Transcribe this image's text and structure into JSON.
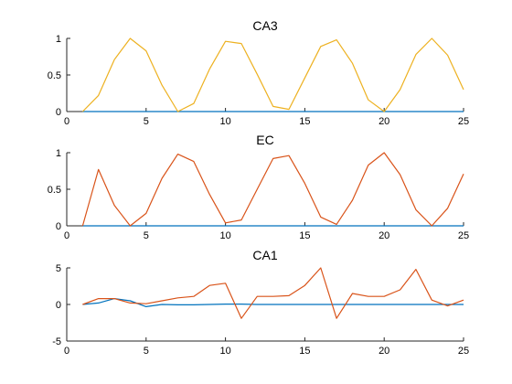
{
  "chart_data": [
    {
      "type": "line",
      "title": "CA3",
      "xlim": [
        0,
        25
      ],
      "ylim": [
        0,
        1
      ],
      "xticks": [
        "0",
        "5",
        "10",
        "15",
        "20",
        "25"
      ],
      "yticks": [
        "0",
        "0.5",
        "1"
      ],
      "x": [
        1,
        2,
        3,
        4,
        5,
        6,
        7,
        8,
        9,
        10,
        11,
        12,
        13,
        14,
        15,
        16,
        17,
        18,
        19,
        20,
        21,
        22,
        23,
        24,
        25
      ],
      "series": [
        {
          "color": "#0072BD",
          "values": [
            0,
            0,
            0,
            0,
            0,
            0,
            0,
            0,
            0,
            0,
            0,
            0,
            0,
            0,
            0,
            0,
            0,
            0,
            0,
            0,
            0,
            0,
            0,
            0,
            0
          ]
        },
        {
          "color": "#EDB120",
          "values": [
            0,
            0.22,
            0.71,
            1.0,
            0.83,
            0.36,
            0.0,
            0.11,
            0.58,
            0.96,
            0.93,
            0.51,
            0.07,
            0.03,
            0.46,
            0.89,
            0.98,
            0.66,
            0.16,
            0.0,
            0.3,
            0.78,
            1.0,
            0.77,
            0.3
          ]
        }
      ]
    },
    {
      "type": "line",
      "title": "EC",
      "xlim": [
        0,
        25
      ],
      "ylim": [
        0,
        1
      ],
      "xticks": [
        "0",
        "5",
        "10",
        "15",
        "20",
        "25"
      ],
      "yticks": [
        "0",
        "0.5",
        "1"
      ],
      "x": [
        1,
        2,
        3,
        4,
        5,
        6,
        7,
        8,
        9,
        10,
        11,
        12,
        13,
        14,
        15,
        16,
        17,
        18,
        19,
        20,
        21,
        22,
        23,
        24,
        25
      ],
      "series": [
        {
          "color": "#0072BD",
          "values": [
            0,
            0,
            0,
            0,
            0,
            0,
            0,
            0,
            0,
            0,
            0,
            0,
            0,
            0,
            0,
            0,
            0,
            0,
            0,
            0,
            0,
            0,
            0,
            0,
            0
          ]
        },
        {
          "color": "#D95319",
          "values": [
            0,
            0.77,
            0.28,
            0.0,
            0.17,
            0.65,
            0.98,
            0.88,
            0.43,
            0.04,
            0.08,
            0.5,
            0.92,
            0.96,
            0.58,
            0.12,
            0.02,
            0.35,
            0.83,
            1.0,
            0.7,
            0.22,
            0.0,
            0.24,
            0.71
          ]
        }
      ]
    },
    {
      "type": "line",
      "title": "CA1",
      "xlim": [
        0,
        25
      ],
      "ylim": [
        -5,
        5
      ],
      "xticks": [
        "0",
        "5",
        "10",
        "15",
        "20",
        "25"
      ],
      "yticks": [
        "-5",
        "0",
        "5"
      ],
      "x": [
        1,
        2,
        3,
        4,
        5,
        6,
        7,
        8,
        9,
        10,
        11,
        12,
        13,
        14,
        15,
        16,
        17,
        18,
        19,
        20,
        21,
        22,
        23,
        24,
        25
      ],
      "series": [
        {
          "color": "#0072BD",
          "values": [
            0,
            0.2,
            0.8,
            0.5,
            -0.3,
            0.0,
            -0.05,
            -0.05,
            0,
            0.05,
            0.05,
            0,
            0,
            0,
            0,
            0,
            0,
            0,
            0,
            0,
            0,
            0,
            0,
            0,
            0
          ]
        },
        {
          "color": "#D95319",
          "values": [
            0,
            0.8,
            0.8,
            0.2,
            0.1,
            0.5,
            0.9,
            1.1,
            2.6,
            2.9,
            -1.9,
            1.1,
            1.1,
            1.2,
            2.6,
            5.0,
            -1.9,
            1.5,
            1.1,
            1.1,
            2.0,
            4.8,
            0.6,
            -0.2,
            0.6
          ]
        }
      ]
    }
  ]
}
